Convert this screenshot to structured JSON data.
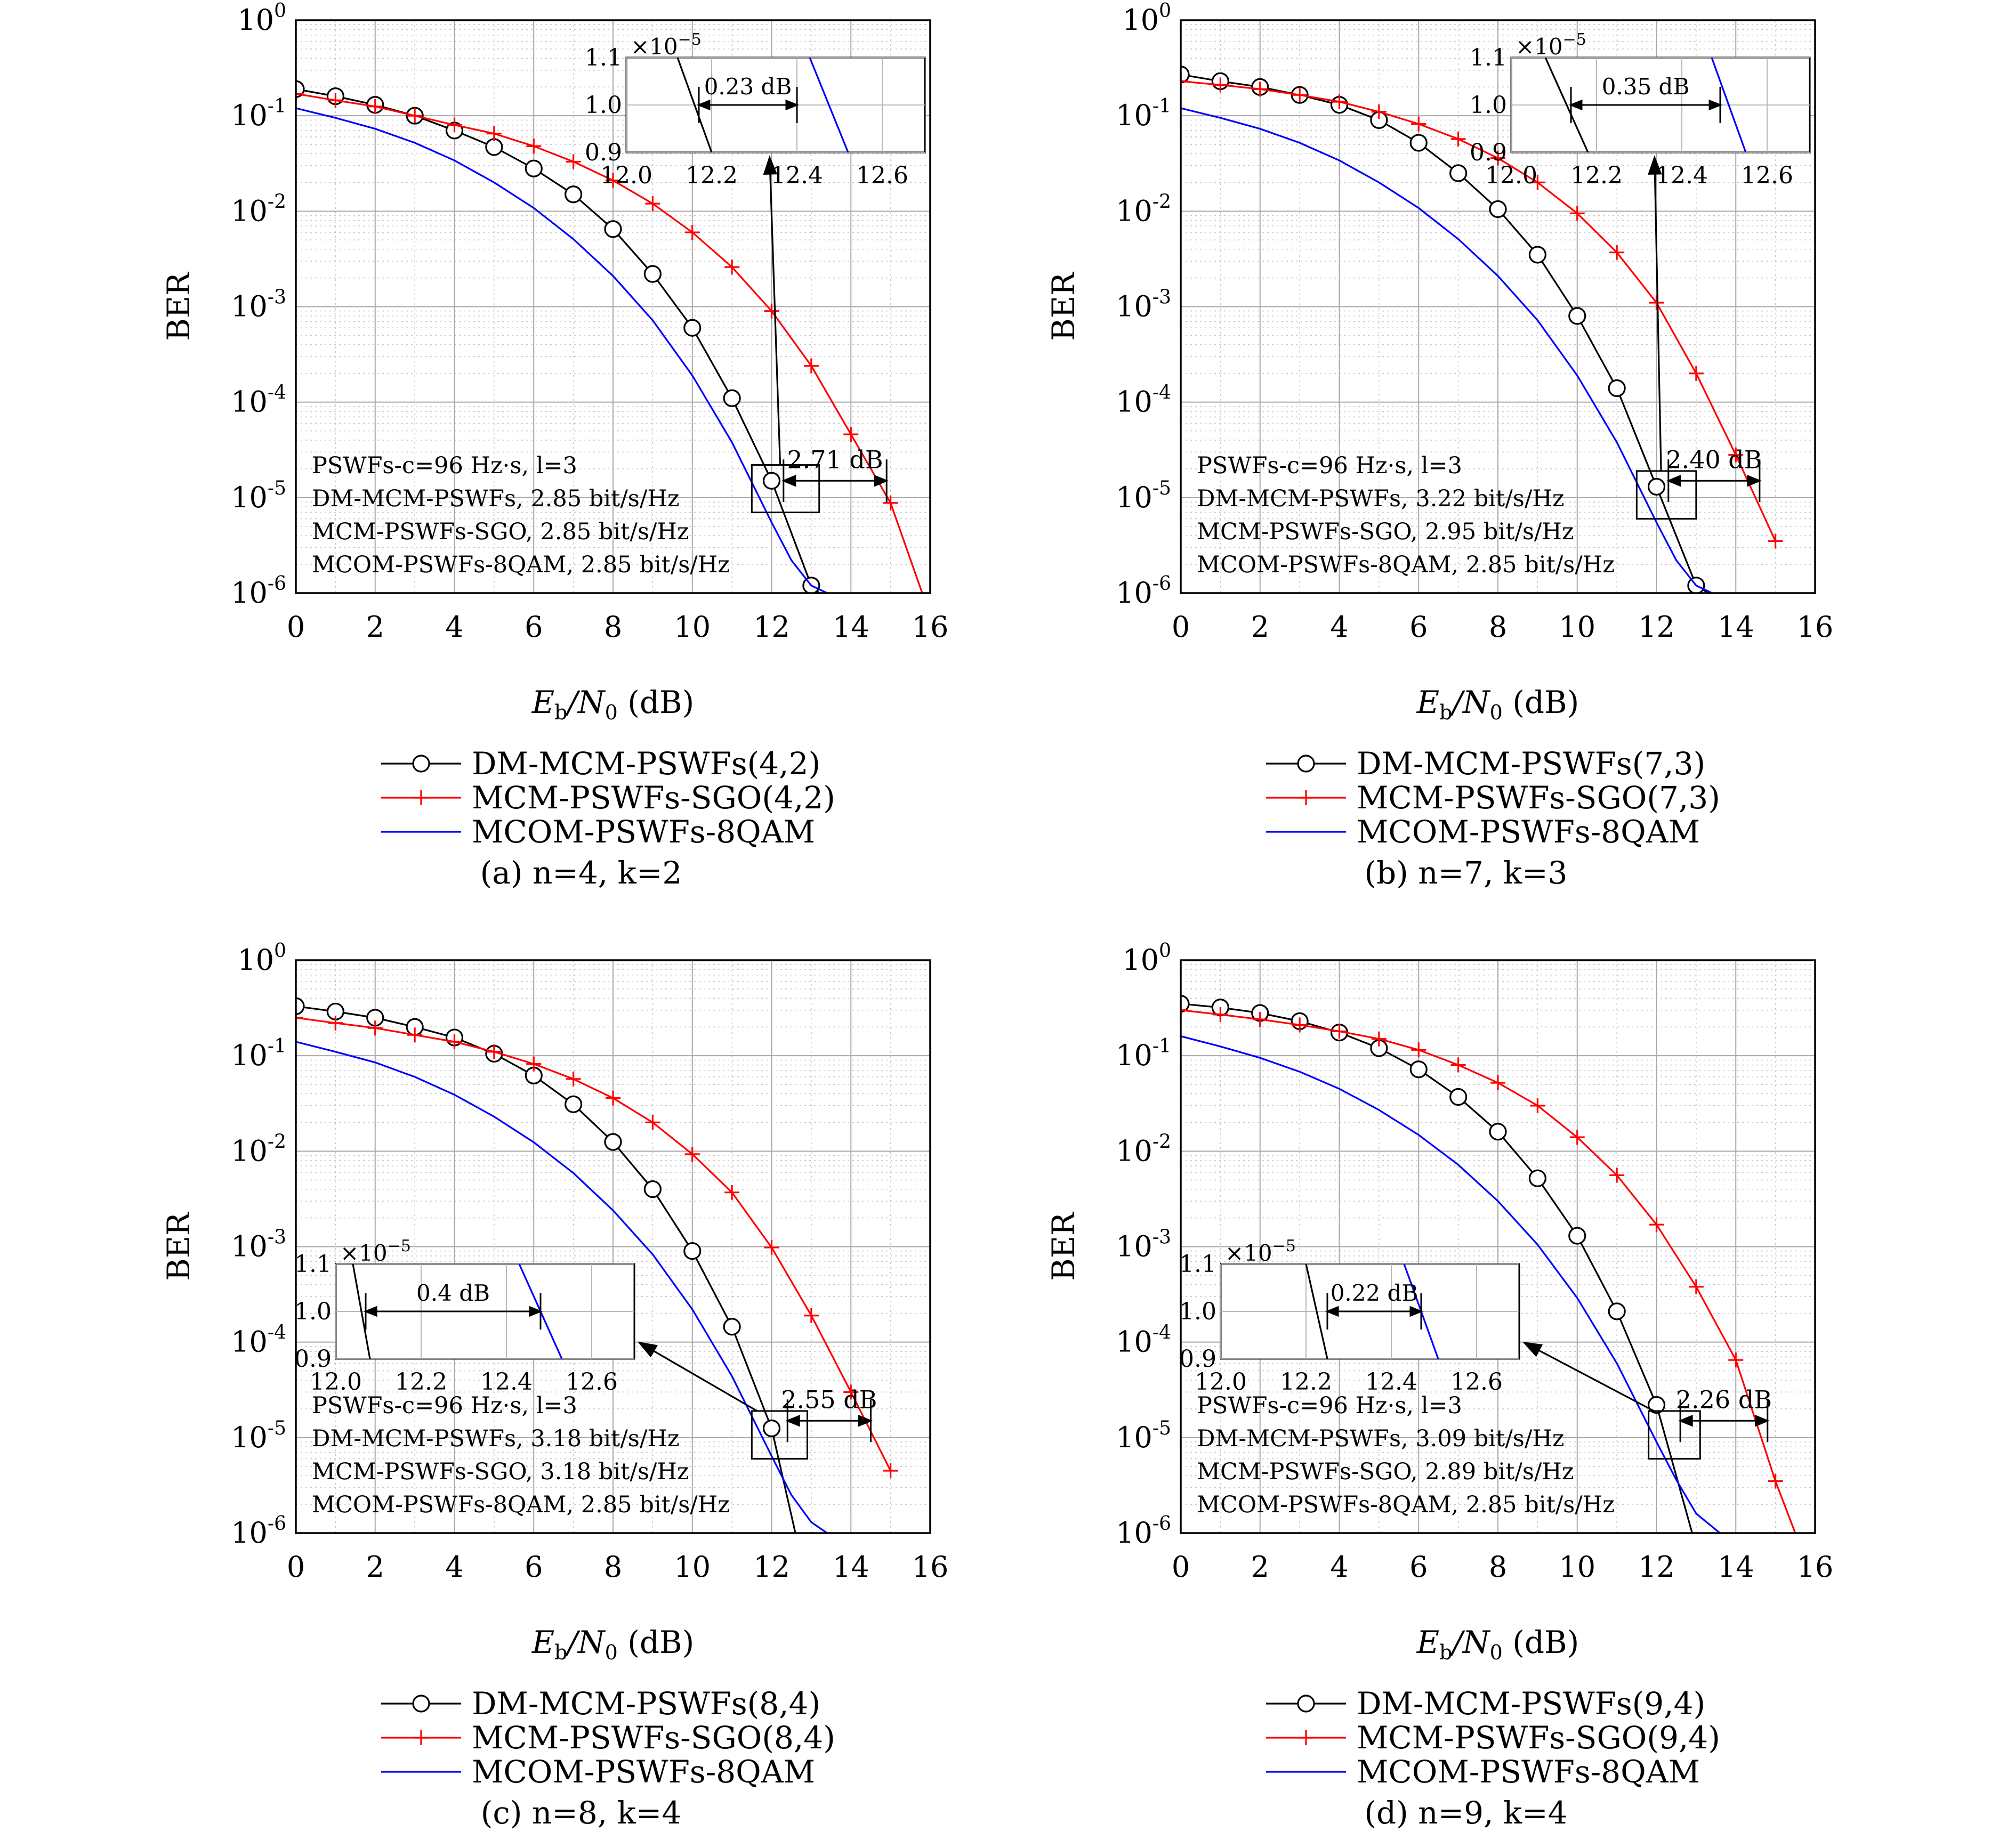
{
  "chart_data": [
    {
      "type": "line",
      "panel_label": "(a) n=4, k=2",
      "xlabel_main": "E",
      "xlabel_sub1": "b",
      "xlabel_mid": "/N",
      "xlabel_sub2": "0",
      "xlabel_unit": " (dB)",
      "ylabel": "BER",
      "xlim": [
        0,
        16
      ],
      "ylim": [
        1e-06,
        1
      ],
      "yscale": "log",
      "xticks": [
        "0",
        "2",
        "4",
        "6",
        "8",
        "10",
        "12",
        "14",
        "16"
      ],
      "yticks": [
        {
          "b": "10",
          "e": "0"
        },
        {
          "b": "10",
          "e": "-1"
        },
        {
          "b": "10",
          "e": "-2"
        },
        {
          "b": "10",
          "e": "-3"
        },
        {
          "b": "10",
          "e": "-4"
        },
        {
          "b": "10",
          "e": "-5"
        },
        {
          "b": "10",
          "e": "-6"
        }
      ],
      "grid": true,
      "series": [
        {
          "name": "DM-MCM-PSWFs(4,2)",
          "color": "#000000",
          "marker": "circle",
          "x": [
            0,
            1,
            2,
            3,
            4,
            5,
            6,
            7,
            8,
            9,
            10,
            11,
            12,
            13,
            13.2
          ],
          "y": [
            0.19,
            0.16,
            0.13,
            0.1,
            0.07,
            0.047,
            0.028,
            0.015,
            0.0065,
            0.0022,
            0.0006,
            0.00011,
            1.5e-05,
            1.2e-06,
            1e-06
          ]
        },
        {
          "name": "MCM-PSWFs-SGO(4,2)",
          "color": "#ff0000",
          "marker": "plus",
          "x": [
            0,
            1,
            2,
            3,
            4,
            5,
            6,
            7,
            8,
            9,
            10,
            11,
            12,
            13,
            14,
            15,
            15.8
          ],
          "y": [
            0.17,
            0.145,
            0.125,
            0.1,
            0.08,
            0.065,
            0.048,
            0.033,
            0.021,
            0.012,
            0.006,
            0.0026,
            0.0009,
            0.00024,
            4.6e-05,
            8.8e-06,
            1e-06
          ]
        },
        {
          "name": "MCOM-PSWFs-8QAM",
          "color": "#0000ff",
          "marker": "none",
          "x": [
            0,
            1,
            2,
            3,
            4,
            5,
            6,
            7,
            8,
            9,
            10,
            11,
            12,
            12.5,
            13,
            13.4
          ],
          "y": [
            0.12,
            0.095,
            0.073,
            0.052,
            0.034,
            0.02,
            0.0108,
            0.0051,
            0.0021,
            0.00072,
            0.00019,
            3.8e-05,
            5.5e-06,
            2.2e-06,
            1.2e-06,
            1e-06
          ]
        }
      ],
      "legend_position": "below plot",
      "annotations": {
        "note_lines": [
          "PSWFs-c=96 Hz·s, l=3",
          "DM-MCM-PSWFs, 2.85 bit/s/Hz",
          "MCM-PSWFs-SGO, 2.85 bit/s/Hz",
          "MCOM-PSWFs-8QAM, 2.85 bit/s/Hz"
        ],
        "gap_label": "2.71 dB",
        "gap_x": [
          12.3,
          14.9
        ],
        "gap_y": 1.5e-05,
        "zoom_box": {
          "x": [
            11.5,
            13.2
          ],
          "y": [
            7e-06,
            2.2e-05
          ]
        },
        "inset": {
          "position": "top-right",
          "xlim": [
            12.0,
            12.7
          ],
          "ylim": [
            0.9,
            1.1
          ],
          "xticks": [
            "12.0",
            "12.2",
            "12.4",
            "12.6"
          ],
          "yticks": [
            "0.9",
            "1.0",
            "1.1"
          ],
          "exponent_base": "×10",
          "exponent_power": "−5",
          "gap_label": "0.23 dB",
          "gap_x": [
            12.17,
            12.4
          ],
          "black_line": [
            [
              12.12,
              1.1
            ],
            [
              12.2,
              0.9
            ]
          ],
          "blue_line": [
            [
              12.43,
              1.1
            ],
            [
              12.52,
              0.9
            ]
          ]
        }
      }
    },
    {
      "type": "line",
      "panel_label": "(b) n=7, k=3",
      "xlabel_main": "E",
      "xlabel_sub1": "b",
      "xlabel_mid": "/N",
      "xlabel_sub2": "0",
      "xlabel_unit": " (dB)",
      "ylabel": "BER",
      "xlim": [
        0,
        16
      ],
      "ylim": [
        1e-06,
        1
      ],
      "yscale": "log",
      "xticks": [
        "0",
        "2",
        "4",
        "6",
        "8",
        "10",
        "12",
        "14",
        "16"
      ],
      "yticks": [
        {
          "b": "10",
          "e": "0"
        },
        {
          "b": "10",
          "e": "-1"
        },
        {
          "b": "10",
          "e": "-2"
        },
        {
          "b": "10",
          "e": "-3"
        },
        {
          "b": "10",
          "e": "-4"
        },
        {
          "b": "10",
          "e": "-5"
        },
        {
          "b": "10",
          "e": "-6"
        }
      ],
      "grid": true,
      "series": [
        {
          "name": "DM-MCM-PSWFs(7,3)",
          "color": "#000000",
          "marker": "circle",
          "x": [
            0,
            1,
            2,
            3,
            4,
            5,
            6,
            7,
            8,
            9,
            10,
            11,
            12,
            13,
            13.3
          ],
          "y": [
            0.27,
            0.23,
            0.2,
            0.165,
            0.13,
            0.09,
            0.052,
            0.025,
            0.0105,
            0.0035,
            0.0008,
            0.00014,
            1.3e-05,
            1.2e-06,
            1e-06
          ]
        },
        {
          "name": "MCM-PSWFs-SGO(7,3)",
          "color": "#ff0000",
          "marker": "plus",
          "x": [
            0,
            1,
            2,
            3,
            4,
            5,
            6,
            7,
            8,
            9,
            10,
            11,
            12,
            13,
            14,
            15
          ],
          "y": [
            0.23,
            0.21,
            0.19,
            0.165,
            0.14,
            0.11,
            0.082,
            0.057,
            0.036,
            0.02,
            0.0095,
            0.0037,
            0.0011,
            0.0002,
            2.8e-05,
            3.5e-06
          ]
        },
        {
          "name": "MCOM-PSWFs-8QAM",
          "color": "#0000ff",
          "marker": "none",
          "x": [
            0,
            1,
            2,
            3,
            4,
            5,
            6,
            7,
            8,
            9,
            10,
            11,
            12,
            12.5,
            13,
            13.4
          ],
          "y": [
            0.12,
            0.095,
            0.073,
            0.052,
            0.034,
            0.02,
            0.0108,
            0.0051,
            0.0021,
            0.00072,
            0.00019,
            3.8e-05,
            5.5e-06,
            2.2e-06,
            1.2e-06,
            1e-06
          ]
        }
      ],
      "legend_position": "below plot",
      "annotations": {
        "note_lines": [
          "PSWFs-c=96 Hz·s, l=3",
          "DM-MCM-PSWFs, 3.22 bit/s/Hz",
          "MCM-PSWFs-SGO, 2.95 bit/s/Hz",
          "MCOM-PSWFs-8QAM, 2.85 bit/s/Hz"
        ],
        "gap_label": "2.40 dB",
        "gap_x": [
          12.3,
          14.6
        ],
        "gap_y": 1.5e-05,
        "zoom_box": {
          "x": [
            11.5,
            13.0
          ],
          "y": [
            6e-06,
            1.9e-05
          ]
        },
        "inset": {
          "position": "top-right",
          "xlim": [
            12.0,
            12.7
          ],
          "ylim": [
            0.9,
            1.1
          ],
          "xticks": [
            "12.0",
            "12.2",
            "12.4",
            "12.6"
          ],
          "yticks": [
            "0.9",
            "1.0",
            "1.1"
          ],
          "exponent_base": "×10",
          "exponent_power": "−5",
          "gap_label": "0.35 dB",
          "gap_x": [
            12.14,
            12.49
          ],
          "black_line": [
            [
              12.08,
              1.1
            ],
            [
              12.18,
              0.9
            ]
          ],
          "blue_line": [
            [
              12.47,
              1.1
            ],
            [
              12.55,
              0.9
            ]
          ]
        }
      }
    },
    {
      "type": "line",
      "panel_label": "(c) n=8, k=4",
      "xlabel_main": "E",
      "xlabel_sub1": "b",
      "xlabel_mid": "/N",
      "xlabel_sub2": "0",
      "xlabel_unit": " (dB)",
      "ylabel": "BER",
      "xlim": [
        0,
        16
      ],
      "ylim": [
        1e-06,
        1
      ],
      "yscale": "log",
      "xticks": [
        "0",
        "2",
        "4",
        "6",
        "8",
        "10",
        "12",
        "14",
        "16"
      ],
      "yticks": [
        {
          "b": "10",
          "e": "0"
        },
        {
          "b": "10",
          "e": "-1"
        },
        {
          "b": "10",
          "e": "-2"
        },
        {
          "b": "10",
          "e": "-3"
        },
        {
          "b": "10",
          "e": "-4"
        },
        {
          "b": "10",
          "e": "-5"
        },
        {
          "b": "10",
          "e": "-6"
        }
      ],
      "grid": true,
      "series": [
        {
          "name": "DM-MCM-PSWFs(8,4)",
          "color": "#000000",
          "marker": "circle",
          "x": [
            0,
            1,
            2,
            3,
            4,
            5,
            6,
            7,
            8,
            9,
            10,
            11,
            12,
            12.6
          ],
          "y": [
            0.33,
            0.29,
            0.25,
            0.2,
            0.155,
            0.105,
            0.062,
            0.031,
            0.0125,
            0.004,
            0.0009,
            0.000145,
            1.25e-05,
            1e-06
          ]
        },
        {
          "name": "MCM-PSWFs-SGO(8,4)",
          "color": "#ff0000",
          "marker": "plus",
          "x": [
            0,
            1,
            2,
            3,
            4,
            5,
            6,
            7,
            8,
            9,
            10,
            11,
            12,
            13,
            14,
            15
          ],
          "y": [
            0.25,
            0.22,
            0.195,
            0.165,
            0.14,
            0.11,
            0.082,
            0.057,
            0.036,
            0.02,
            0.0093,
            0.0037,
            0.00098,
            0.00019,
            3e-05,
            4.5e-06
          ]
        },
        {
          "name": "MCOM-PSWFs-8QAM",
          "color": "#0000ff",
          "marker": "none",
          "x": [
            0,
            1,
            2,
            3,
            4,
            5,
            6,
            7,
            8,
            9,
            10,
            11,
            12,
            12.5,
            13,
            13.4
          ],
          "y": [
            0.14,
            0.11,
            0.085,
            0.06,
            0.039,
            0.023,
            0.0124,
            0.0059,
            0.0024,
            0.00083,
            0.00022,
            4.4e-05,
            6.4e-06,
            2.5e-06,
            1.3e-06,
            1e-06
          ]
        }
      ],
      "legend_position": "below plot",
      "annotations": {
        "note_lines": [
          "PSWFs-c=96 Hz·s, l=3",
          "DM-MCM-PSWFs, 3.18 bit/s/Hz",
          "MCM-PSWFs-SGO, 3.18 bit/s/Hz",
          "MCOM-PSWFs-8QAM, 2.85 bit/s/Hz"
        ],
        "gap_label": "2.55 dB",
        "gap_x": [
          12.4,
          14.5
        ],
        "gap_y": 1.5e-05,
        "zoom_box": {
          "x": [
            11.5,
            12.9
          ],
          "y": [
            6e-06,
            1.9e-05
          ]
        },
        "inset": {
          "position": "bottom-left",
          "xlim": [
            12.0,
            12.7
          ],
          "ylim": [
            0.9,
            1.1
          ],
          "xticks": [
            "12.0",
            "12.2",
            "12.4",
            "12.6"
          ],
          "yticks": [
            "0.9",
            "1.0",
            "1.1"
          ],
          "exponent_base": "×10",
          "exponent_power": "−5",
          "gap_label": "0.4 dB",
          "gap_x": [
            12.07,
            12.48
          ],
          "black_line": [
            [
              12.04,
              1.1
            ],
            [
              12.08,
              0.9
            ]
          ],
          "blue_line": [
            [
              12.43,
              1.1
            ],
            [
              12.53,
              0.9
            ]
          ]
        }
      }
    },
    {
      "type": "line",
      "panel_label": "(d) n=9, k=4",
      "xlabel_main": "E",
      "xlabel_sub1": "b",
      "xlabel_mid": "/N",
      "xlabel_sub2": "0",
      "xlabel_unit": " (dB)",
      "ylabel": "BER",
      "xlim": [
        0,
        16
      ],
      "ylim": [
        1e-06,
        1
      ],
      "yscale": "log",
      "xticks": [
        "0",
        "2",
        "4",
        "6",
        "8",
        "10",
        "12",
        "14",
        "16"
      ],
      "yticks": [
        {
          "b": "10",
          "e": "0"
        },
        {
          "b": "10",
          "e": "-1"
        },
        {
          "b": "10",
          "e": "-2"
        },
        {
          "b": "10",
          "e": "-3"
        },
        {
          "b": "10",
          "e": "-4"
        },
        {
          "b": "10",
          "e": "-5"
        },
        {
          "b": "10",
          "e": "-6"
        }
      ],
      "grid": true,
      "series": [
        {
          "name": "DM-MCM-PSWFs(9,4)",
          "color": "#000000",
          "marker": "circle",
          "x": [
            0,
            1,
            2,
            3,
            4,
            5,
            6,
            7,
            8,
            9,
            10,
            11,
            12,
            12.9
          ],
          "y": [
            0.35,
            0.32,
            0.28,
            0.23,
            0.175,
            0.12,
            0.072,
            0.037,
            0.016,
            0.0052,
            0.0013,
            0.00021,
            2.2e-05,
            1e-06
          ]
        },
        {
          "name": "MCM-PSWFs-SGO(9,4)",
          "color": "#ff0000",
          "marker": "plus",
          "x": [
            0,
            1,
            2,
            3,
            4,
            5,
            6,
            7,
            8,
            9,
            10,
            11,
            12,
            13,
            14,
            15,
            15.5
          ],
          "y": [
            0.3,
            0.27,
            0.24,
            0.21,
            0.18,
            0.15,
            0.115,
            0.08,
            0.052,
            0.03,
            0.014,
            0.0056,
            0.0017,
            0.00038,
            6.5e-05,
            3.5e-06,
            1e-06
          ]
        },
        {
          "name": "MCOM-PSWFs-8QAM",
          "color": "#0000ff",
          "marker": "none",
          "x": [
            0,
            1,
            2,
            3,
            4,
            5,
            6,
            7,
            8,
            9,
            10,
            11,
            12,
            12.5,
            13,
            13.6
          ],
          "y": [
            0.16,
            0.125,
            0.095,
            0.068,
            0.045,
            0.027,
            0.0148,
            0.0072,
            0.003,
            0.00105,
            0.00029,
            6e-05,
            9e-06,
            3.6e-06,
            1.6e-06,
            1e-06
          ]
        }
      ],
      "legend_position": "below plot",
      "annotations": {
        "note_lines": [
          "PSWFs-c=96 Hz·s, l=3",
          "DM-MCM-PSWFs, 3.09 bit/s/Hz",
          "MCM-PSWFs-SGO, 2.89 bit/s/Hz",
          "MCOM-PSWFs-8QAM, 2.85 bit/s/Hz"
        ],
        "gap_label": "2.26 dB",
        "gap_x": [
          12.6,
          14.8
        ],
        "gap_y": 1.5e-05,
        "zoom_box": {
          "x": [
            11.8,
            13.1
          ],
          "y": [
            6e-06,
            1.9e-05
          ]
        },
        "inset": {
          "position": "bottom-left",
          "xlim": [
            12.0,
            12.7
          ],
          "ylim": [
            0.9,
            1.1
          ],
          "xticks": [
            "12.0",
            "12.2",
            "12.4",
            "12.6"
          ],
          "yticks": [
            "0.9",
            "1.0",
            "1.1"
          ],
          "exponent_base": "×10",
          "exponent_power": "−5",
          "gap_label": "0.22 dB",
          "gap_x": [
            12.25,
            12.47
          ],
          "black_line": [
            [
              12.2,
              1.1
            ],
            [
              12.25,
              0.9
            ]
          ],
          "blue_line": [
            [
              12.43,
              1.1
            ],
            [
              12.51,
              0.9
            ]
          ]
        }
      }
    }
  ]
}
